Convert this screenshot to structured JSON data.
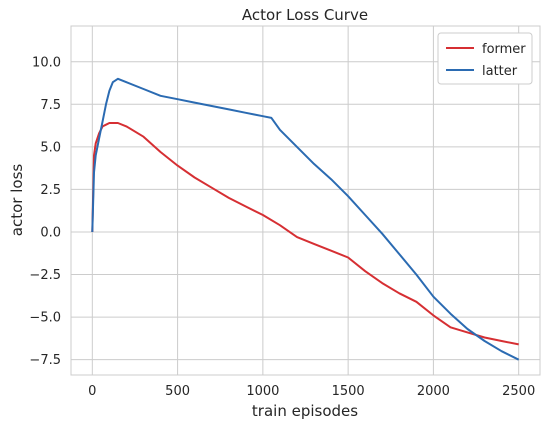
{
  "chart_data": {
    "type": "line",
    "title": "Actor Loss Curve",
    "xlabel": "train episodes",
    "ylabel": "actor loss",
    "xlim": [
      -125,
      2625
    ],
    "ylim": [
      -8.4,
      12.1
    ],
    "xticks": [
      0,
      500,
      1000,
      1500,
      2000,
      2500
    ],
    "xtick_labels": [
      "0",
      "500",
      "1000",
      "1500",
      "2000",
      "2500"
    ],
    "yticks": [
      -7.5,
      -5.0,
      -2.5,
      0.0,
      2.5,
      5.0,
      7.5,
      10.0
    ],
    "ytick_labels": [
      "−7.5",
      "−5.0",
      "−2.5",
      "0.0",
      "2.5",
      "5.0",
      "7.5",
      "10.0"
    ],
    "grid": true,
    "legend_position": "top-right",
    "series": [
      {
        "name": "former",
        "color": "#d62f33",
        "x": [
          0,
          10,
          20,
          40,
          60,
          80,
          100,
          150,
          200,
          300,
          400,
          500,
          600,
          700,
          800,
          900,
          1000,
          1100,
          1200,
          1300,
          1400,
          1500,
          1600,
          1700,
          1800,
          1900,
          2000,
          2100,
          2200,
          2300,
          2400,
          2500
        ],
        "y": [
          0.0,
          4.5,
          5.2,
          5.8,
          6.2,
          6.3,
          6.4,
          6.4,
          6.2,
          5.6,
          4.7,
          3.9,
          3.2,
          2.6,
          2.0,
          1.5,
          1.0,
          0.4,
          -0.3,
          -0.7,
          -1.1,
          -1.5,
          -2.3,
          -3.0,
          -3.6,
          -4.1,
          -4.9,
          -5.6,
          -5.9,
          -6.2,
          -6.4,
          -6.6
        ]
      },
      {
        "name": "latter",
        "color": "#2b6bb2",
        "x": [
          0,
          10,
          20,
          40,
          60,
          80,
          100,
          120,
          150,
          200,
          300,
          400,
          500,
          600,
          700,
          800,
          900,
          950,
          1000,
          1050,
          1100,
          1200,
          1300,
          1400,
          1500,
          1600,
          1700,
          1800,
          1900,
          2000,
          2100,
          2200,
          2300,
          2400,
          2500
        ],
        "y": [
          0.0,
          3.5,
          4.5,
          5.5,
          6.5,
          7.5,
          8.3,
          8.8,
          9.0,
          8.8,
          8.4,
          8.0,
          7.8,
          7.6,
          7.4,
          7.2,
          7.0,
          6.9,
          6.8,
          6.7,
          6.0,
          5.0,
          4.0,
          3.1,
          2.1,
          1.0,
          -0.1,
          -1.3,
          -2.5,
          -3.8,
          -4.8,
          -5.7,
          -6.4,
          -7.0,
          -7.5
        ]
      }
    ]
  }
}
